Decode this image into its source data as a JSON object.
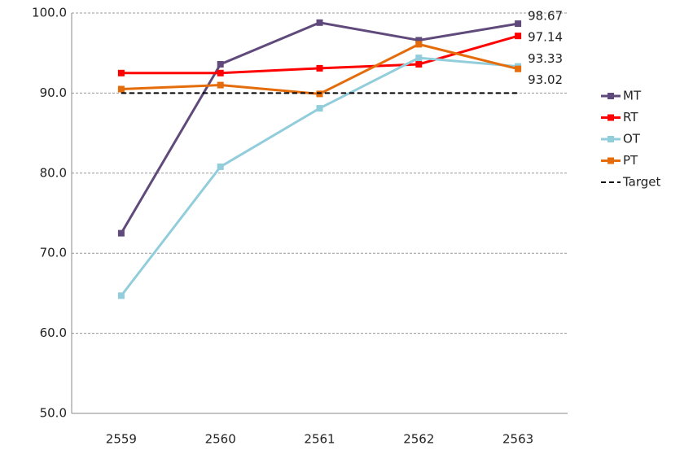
{
  "chart_data": {
    "type": "line",
    "categories": [
      "2559",
      "2560",
      "2561",
      "2562",
      "2563"
    ],
    "series": [
      {
        "name": "MT",
        "color": "#604a7b",
        "values": [
          72.5,
          93.6,
          98.8,
          96.6,
          98.67
        ]
      },
      {
        "name": "RT",
        "color": "#ff0000",
        "values": [
          92.5,
          92.5,
          93.1,
          93.6,
          97.14
        ]
      },
      {
        "name": "OT",
        "color": "#92cddc",
        "values": [
          64.7,
          80.8,
          88.1,
          94.4,
          93.33
        ]
      },
      {
        "name": "PT",
        "color": "#e46c0a",
        "values": [
          90.5,
          91.0,
          89.9,
          96.1,
          93.02
        ]
      },
      {
        "name": "Target",
        "color": "#000000",
        "dashed": true,
        "values": [
          90,
          90,
          90,
          90,
          90
        ]
      }
    ],
    "data_labels": "last",
    "ylim": [
      50,
      100
    ],
    "yticks": [
      {
        "value": 50,
        "label": "50.0"
      },
      {
        "value": 60,
        "label": "60.0"
      },
      {
        "value": 70,
        "label": "70.0"
      },
      {
        "value": 80,
        "label": "80.0"
      },
      {
        "value": 90,
        "label": "90.0"
      },
      {
        "value": 100,
        "label": "100.0"
      }
    ],
    "grid": true,
    "legend": "right"
  }
}
